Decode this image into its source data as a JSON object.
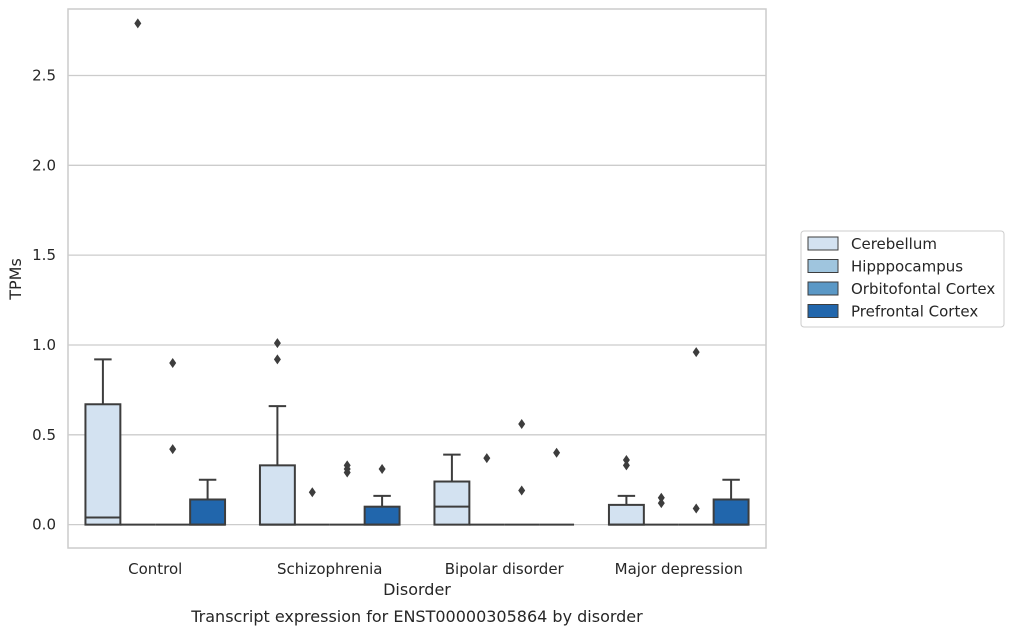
{
  "chart_data": {
    "type": "box",
    "title": "",
    "caption": "Transcript expression for ENST00000305864 by disorder",
    "xlabel": "Disorder",
    "ylabel": "TPMs",
    "ylim": [
      -0.13,
      2.87
    ],
    "yticks": [
      "0.0",
      "0.5",
      "1.0",
      "1.5",
      "2.0",
      "2.5"
    ],
    "categories": [
      "Control",
      "Schizophrenia",
      "Bipolar disorder",
      "Major depression"
    ],
    "grid": "horizontal",
    "legend_position": "right",
    "series": [
      {
        "name": "Cerebellum",
        "color": "#d3e2f1",
        "boxes": [
          {
            "q1": 0.0,
            "median": 0.04,
            "q3": 0.67,
            "whisker_low": 0.0,
            "whisker_high": 0.92,
            "outliers": []
          },
          {
            "q1": 0.0,
            "median": 0.0,
            "q3": 0.33,
            "whisker_low": 0.0,
            "whisker_high": 0.66,
            "outliers": [
              0.92,
              1.01
            ]
          },
          {
            "q1": 0.0,
            "median": 0.1,
            "q3": 0.24,
            "whisker_low": 0.0,
            "whisker_high": 0.39,
            "outliers": []
          },
          {
            "q1": 0.0,
            "median": 0.0,
            "q3": 0.11,
            "whisker_low": 0.0,
            "whisker_high": 0.16,
            "outliers": [
              0.33,
              0.36
            ]
          }
        ]
      },
      {
        "name": "Hipppocampus",
        "color": "#9fc5de",
        "boxes": [
          {
            "q1": 0.0,
            "median": 0.0,
            "q3": 0.0,
            "whisker_low": 0.0,
            "whisker_high": 0.0,
            "outliers": [
              2.79
            ]
          },
          {
            "q1": 0.0,
            "median": 0.0,
            "q3": 0.0,
            "whisker_low": 0.0,
            "whisker_high": 0.0,
            "outliers": [
              0.18
            ]
          },
          {
            "q1": 0.0,
            "median": 0.0,
            "q3": 0.0,
            "whisker_low": 0.0,
            "whisker_high": 0.0,
            "outliers": [
              0.37
            ]
          },
          {
            "q1": 0.0,
            "median": 0.0,
            "q3": 0.0,
            "whisker_low": 0.0,
            "whisker_high": 0.0,
            "outliers": [
              0.12,
              0.15
            ]
          }
        ]
      },
      {
        "name": "Orbitofontal Cortex",
        "color": "#5a98c6",
        "boxes": [
          {
            "q1": 0.0,
            "median": 0.0,
            "q3": 0.0,
            "whisker_low": 0.0,
            "whisker_high": 0.0,
            "outliers": [
              0.42,
              0.9
            ]
          },
          {
            "q1": 0.0,
            "median": 0.0,
            "q3": 0.0,
            "whisker_low": 0.0,
            "whisker_high": 0.0,
            "outliers": [
              0.29,
              0.31,
              0.33
            ]
          },
          {
            "q1": 0.0,
            "median": 0.0,
            "q3": 0.0,
            "whisker_low": 0.0,
            "whisker_high": 0.0,
            "outliers": [
              0.19,
              0.56
            ]
          },
          {
            "q1": 0.0,
            "median": 0.0,
            "q3": 0.0,
            "whisker_low": 0.0,
            "whisker_high": 0.0,
            "outliers": [
              0.09,
              0.96
            ]
          }
        ]
      },
      {
        "name": "Prefrontal Cortex",
        "color": "#2166ac",
        "boxes": [
          {
            "q1": 0.0,
            "median": 0.0,
            "q3": 0.14,
            "whisker_low": 0.0,
            "whisker_high": 0.25,
            "outliers": []
          },
          {
            "q1": 0.0,
            "median": 0.0,
            "q3": 0.1,
            "whisker_low": 0.0,
            "whisker_high": 0.16,
            "outliers": [
              0.31
            ]
          },
          {
            "q1": 0.0,
            "median": 0.0,
            "q3": 0.0,
            "whisker_low": 0.0,
            "whisker_high": 0.0,
            "outliers": [
              0.4
            ]
          },
          {
            "q1": 0.0,
            "median": 0.0,
            "q3": 0.14,
            "whisker_low": 0.0,
            "whisker_high": 0.25,
            "outliers": []
          }
        ]
      }
    ]
  }
}
